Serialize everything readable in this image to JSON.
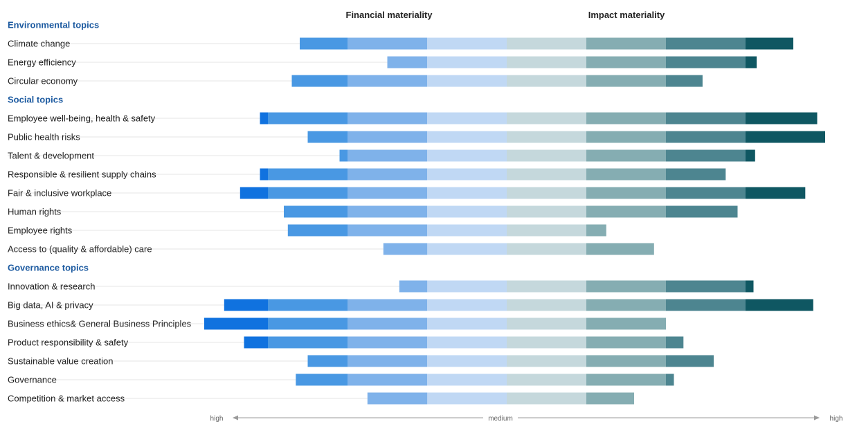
{
  "chart_data": {
    "type": "bar",
    "financial_header": "Financial materiality",
    "impact_header": "Impact materiality",
    "axis": {
      "left_label": "high",
      "center_label": "medium",
      "right_label": "high"
    },
    "scale": {
      "financial": {
        "min": 0,
        "max": 5,
        "direction": "right-to-left",
        "bands": [
          1,
          2,
          3,
          4
        ]
      },
      "impact": {
        "min": 0,
        "max": 5,
        "direction": "left-to-right",
        "bands": [
          1,
          2,
          3,
          4
        ]
      }
    },
    "colors": {
      "financial": [
        "#c0d8f4",
        "#7fb2ea",
        "#4998e3",
        "#1072df"
      ],
      "impact": [
        "#c5d8dc",
        "#85adb2",
        "#4d8590",
        "#0f5762"
      ],
      "gridline": "#e6e6e6",
      "section_header": "#1c5aa0"
    },
    "sections": [
      {
        "name": "Environmental topics",
        "topics": [
          {
            "label": "Climate change",
            "financial": 2.6,
            "impact": 3.6
          },
          {
            "label": "Energy efficiency",
            "financial": 1.5,
            "impact": 3.14
          },
          {
            "label": "Circular economy",
            "financial": 2.7,
            "impact": 2.46
          }
        ]
      },
      {
        "name": "Social topics",
        "topics": [
          {
            "label": "Employee well-being, health & safety",
            "financial": 3.1,
            "impact": 3.9
          },
          {
            "label": "Public health risks",
            "financial": 2.5,
            "impact": 4.25
          },
          {
            "label": "Talent & development",
            "financial": 2.1,
            "impact": 3.12
          },
          {
            "label": "Responsible & resilient supply chains",
            "financial": 3.1,
            "impact": 2.75
          },
          {
            "label": "Fair & inclusive workplace",
            "financial": 3.35,
            "impact": 3.75
          },
          {
            "label": "Human rights",
            "financial": 2.8,
            "impact": 2.9
          },
          {
            "label": "Employee rights",
            "financial": 2.75,
            "impact": 1.25
          },
          {
            "label": "Access to (quality & affordable) care",
            "financial": 1.55,
            "impact": 1.85
          }
        ]
      },
      {
        "name": "Governance topics",
        "topics": [
          {
            "label": "Innovation & research",
            "financial": 1.35,
            "impact": 3.1
          },
          {
            "label": "Big data, AI & privacy",
            "financial": 3.55,
            "impact": 3.85
          },
          {
            "label": "Business ethics& General Business Principles",
            "financial": 3.8,
            "impact": 2.0
          },
          {
            "label": "Product responsibility & safety",
            "financial": 3.3,
            "impact": 2.22
          },
          {
            "label": "Sustainable value creation",
            "financial": 2.5,
            "impact": 2.6
          },
          {
            "label": "Governance",
            "financial": 2.65,
            "impact": 2.1
          },
          {
            "label": "Competition & market access",
            "financial": 1.75,
            "impact": 1.6
          }
        ]
      }
    ]
  }
}
